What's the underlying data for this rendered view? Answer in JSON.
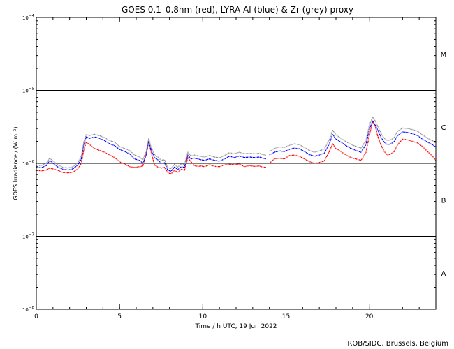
{
  "chart_data": {
    "type": "line",
    "title": "GOES 0.1–0.8nm (red), LYRA Al (blue) & Zr (grey) proxy",
    "xlabel": "Time / h UTC, 19 Jun 2022",
    "ylabel": "GOES Irradiance / (W m⁻²)",
    "xlim": [
      0,
      24
    ],
    "ylim": [
      1e-08,
      0.0001
    ],
    "yscale": "log",
    "x_ticks": [
      {
        "value": 0,
        "label": "0"
      },
      {
        "value": 5,
        "label": "5"
      },
      {
        "value": 10,
        "label": "10"
      },
      {
        "value": 15,
        "label": "15"
      },
      {
        "value": 20,
        "label": "20"
      }
    ],
    "y_ticks": [
      {
        "value": 1e-08,
        "base": "10",
        "exp": "−8"
      },
      {
        "value": 1e-07,
        "base": "10",
        "exp": "−7"
      },
      {
        "value": 1e-06,
        "base": "10",
        "exp": "−6"
      },
      {
        "value": 1e-05,
        "base": "10",
        "exp": "−5"
      },
      {
        "value": 0.0001,
        "base": "10",
        "exp": "−4"
      }
    ],
    "flare_classes": [
      {
        "label": "A",
        "value": 3.16e-08
      },
      {
        "label": "B",
        "value": 3.16e-07
      },
      {
        "label": "C",
        "value": 3.16e-06
      },
      {
        "label": "M",
        "value": 3.16e-05
      }
    ],
    "reference_lines": [
      1e-07,
      1e-06,
      1e-05
    ],
    "credit": "ROB/SIDC, Brussels, Belgium",
    "series": [
      {
        "color": "#ff0000",
        "segments": [
          {
            "x": [
              0,
              0.3,
              0.6,
              0.8,
              1.0,
              1.3,
              1.6,
              1.9,
              2.2,
              2.5,
              2.7,
              2.85,
              3.0,
              3.2,
              3.5,
              3.8,
              4.1,
              4.4,
              4.7,
              5.0,
              5.3,
              5.6,
              5.9,
              6.2,
              6.4,
              6.6,
              6.75,
              6.9,
              7.1,
              7.3,
              7.5,
              7.7,
              7.9,
              8.1,
              8.3,
              8.5,
              8.7,
              8.9,
              9.1,
              9.3,
              9.5,
              9.7,
              9.9,
              10.1,
              10.4,
              10.7,
              11.0,
              11.3,
              11.6,
              11.9,
              12.2,
              12.5,
              12.8,
              13.1,
              13.4,
              13.6,
              13.8
            ],
            "y": [
              8e-07,
              7.9e-07,
              8.1e-07,
              8.6e-07,
              8.4e-07,
              8e-07,
              7.5e-07,
              7.4e-07,
              7.6e-07,
              8.4e-07,
              1e-06,
              1.5e-06,
              1.95e-06,
              1.8e-06,
              1.6e-06,
              1.5e-06,
              1.42e-06,
              1.3e-06,
              1.2e-06,
              1.05e-06,
              9.8e-07,
              9e-07,
              8.8e-07,
              9e-07,
              9.2e-07,
              1.35e-06,
              2e-06,
              1.4e-06,
              9.5e-07,
              8.9e-07,
              8.6e-07,
              8.8e-07,
              7.4e-07,
              7.2e-07,
              8e-07,
              7.5e-07,
              8.3e-07,
              8e-07,
              1.2e-06,
              1.05e-06,
              9.3e-07,
              9.1e-07,
              9.2e-07,
              9e-07,
              9.6e-07,
              9.1e-07,
              9e-07,
              9.5e-07,
              9.7e-07,
              9.6e-07,
              9.8e-07,
              9e-07,
              9.3e-07,
              9.1e-07,
              9.2e-07,
              8.9e-07,
              8.8e-07
            ]
          },
          {
            "x": [
              14.0,
              14.3,
              14.6,
              14.9,
              15.2,
              15.5,
              15.8,
              16.1,
              16.4,
              16.7,
              17.0,
              17.3,
              17.6,
              17.8,
              18.0,
              18.3,
              18.6,
              18.9,
              19.2,
              19.5,
              19.8,
              20.0,
              20.2,
              20.35,
              20.5,
              20.7,
              20.9,
              21.1,
              21.3,
              21.5,
              21.7,
              22.0,
              22.3,
              22.6,
              22.9,
              23.2,
              23.5,
              23.8,
              24.0
            ],
            "y": [
              1e-06,
              1.15e-06,
              1.18e-06,
              1.15e-06,
              1.28e-06,
              1.3e-06,
              1.25e-06,
              1.15e-06,
              1.06e-06,
              1e-06,
              1.03e-06,
              1.08e-06,
              1.45e-06,
              1.85e-06,
              1.6e-06,
              1.45e-06,
              1.3e-06,
              1.2e-06,
              1.15e-06,
              1.1e-06,
              1.4e-06,
              2.4e-06,
              3.7e-06,
              3.3e-06,
              2.4e-06,
              1.8e-06,
              1.45e-06,
              1.3e-06,
              1.35e-06,
              1.45e-06,
              1.8e-06,
              2.15e-06,
              2.1e-06,
              2e-06,
              1.9e-06,
              1.7e-06,
              1.45e-06,
              1.25e-06,
              1.1e-06
            ]
          }
        ]
      },
      {
        "color": "#0000ff",
        "segments": [
          {
            "x": [
              0,
              0.3,
              0.6,
              0.8,
              1.0,
              1.3,
              1.6,
              1.9,
              2.2,
              2.5,
              2.7,
              2.85,
              3.0,
              3.2,
              3.5,
              3.8,
              4.1,
              4.4,
              4.7,
              5.0,
              5.3,
              5.6,
              5.9,
              6.2,
              6.4,
              6.6,
              6.75,
              6.9,
              7.1,
              7.3,
              7.5,
              7.7,
              7.9,
              8.1,
              8.3,
              8.5,
              8.7,
              8.9,
              9.1,
              9.3,
              9.5,
              9.7,
              9.9,
              10.1,
              10.4,
              10.7,
              11.0,
              11.3,
              11.6,
              11.9,
              12.2,
              12.5,
              12.8,
              13.1,
              13.4,
              13.6,
              13.8
            ],
            "y": [
              8.8e-07,
              8.7e-07,
              9.3e-07,
              1.1e-06,
              1e-06,
              8.9e-07,
              8.3e-07,
              8.1e-07,
              8.4e-07,
              9.5e-07,
              1.15e-06,
              1.8e-06,
              2.3e-06,
              2.2e-06,
              2.3e-06,
              2.2e-06,
              2.05e-06,
              1.85e-06,
              1.75e-06,
              1.55e-06,
              1.45e-06,
              1.35e-06,
              1.15e-06,
              1.1e-06,
              1e-06,
              1.3e-06,
              2e-06,
              1.5e-06,
              1.2e-06,
              1.12e-06,
              1e-06,
              1.02e-06,
              8e-07,
              7.8e-07,
              8.9e-07,
              8.2e-07,
              9e-07,
              8.8e-07,
              1.3e-06,
              1.15e-06,
              1.18e-06,
              1.15e-06,
              1.12e-06,
              1.1e-06,
              1.15e-06,
              1.1e-06,
              1.07e-06,
              1.15e-06,
              1.25e-06,
              1.2e-06,
              1.26e-06,
              1.2e-06,
              1.22e-06,
              1.2e-06,
              1.22e-06,
              1.18e-06,
              1.15e-06
            ]
          },
          {
            "x": [
              14.0,
              14.3,
              14.6,
              14.9,
              15.2,
              15.5,
              15.8,
              16.1,
              16.4,
              16.7,
              17.0,
              17.3,
              17.6,
              17.8,
              18.0,
              18.3,
              18.6,
              18.9,
              19.2,
              19.5,
              19.8,
              20.0,
              20.2,
              20.35,
              20.5,
              20.7,
              20.9,
              21.1,
              21.3,
              21.5,
              21.7,
              22.0,
              22.3,
              22.6,
              22.9,
              23.2,
              23.5,
              23.8,
              24.0
            ],
            "y": [
              1.3e-06,
              1.42e-06,
              1.48e-06,
              1.45e-06,
              1.55e-06,
              1.62e-06,
              1.58e-06,
              1.45e-06,
              1.32e-06,
              1.25e-06,
              1.3e-06,
              1.38e-06,
              1.85e-06,
              2.5e-06,
              2.15e-06,
              1.95e-06,
              1.75e-06,
              1.6e-06,
              1.5e-06,
              1.42e-06,
              1.8e-06,
              2.9e-06,
              3.8e-06,
              3.4e-06,
              2.9e-06,
              2.3e-06,
              1.95e-06,
              1.8e-06,
              1.85e-06,
              2e-06,
              2.4e-06,
              2.7e-06,
              2.65e-06,
              2.55e-06,
              2.4e-06,
              2.15e-06,
              1.95e-06,
              1.8e-06,
              1.68e-06
            ]
          }
        ]
      },
      {
        "color": "#909090",
        "segments": [
          {
            "x": [
              0,
              0.3,
              0.6,
              0.8,
              1.0,
              1.3,
              1.6,
              1.9,
              2.2,
              2.5,
              2.7,
              2.85,
              3.0,
              3.2,
              3.5,
              3.8,
              4.1,
              4.4,
              4.7,
              5.0,
              5.3,
              5.6,
              5.9,
              6.2,
              6.4,
              6.6,
              6.75,
              6.9,
              7.1,
              7.3,
              7.5,
              7.7,
              7.9,
              8.1,
              8.3,
              8.5,
              8.7,
              8.9,
              9.1,
              9.3,
              9.5,
              9.7,
              9.9,
              10.1,
              10.4,
              10.7,
              11.0,
              11.3,
              11.6,
              11.9,
              12.2,
              12.5,
              12.8,
              13.1,
              13.4,
              13.6,
              13.8
            ],
            "y": [
              9.4e-07,
              9.3e-07,
              1e-06,
              1.18e-06,
              1.08e-06,
              9.5e-07,
              8.8e-07,
              8.6e-07,
              9e-07,
              1.02e-06,
              1.25e-06,
              1.95e-06,
              2.5e-06,
              2.4e-06,
              2.5e-06,
              2.4e-06,
              2.25e-06,
              2.05e-06,
              1.95e-06,
              1.7e-06,
              1.6e-06,
              1.5e-06,
              1.3e-06,
              1.22e-06,
              1.12e-06,
              1.45e-06,
              2.2e-06,
              1.65e-06,
              1.32e-06,
              1.22e-06,
              1.1e-06,
              1.12e-06,
              8.7e-07,
              8.5e-07,
              9.7e-07,
              8.9e-07,
              9.8e-07,
              9.6e-07,
              1.42e-06,
              1.26e-06,
              1.3e-06,
              1.27e-06,
              1.24e-06,
              1.22e-06,
              1.28e-06,
              1.22e-06,
              1.19e-06,
              1.28e-06,
              1.4e-06,
              1.35e-06,
              1.42e-06,
              1.35e-06,
              1.37e-06,
              1.35e-06,
              1.37e-06,
              1.32e-06,
              1.29e-06
            ]
          },
          {
            "x": [
              14.0,
              14.3,
              14.6,
              14.9,
              15.2,
              15.5,
              15.8,
              16.1,
              16.4,
              16.7,
              17.0,
              17.3,
              17.6,
              17.8,
              18.0,
              18.3,
              18.6,
              18.9,
              19.2,
              19.5,
              19.8,
              20.0,
              20.2,
              20.35,
              20.5,
              20.7,
              20.9,
              21.1,
              21.3,
              21.5,
              21.7,
              22.0,
              22.3,
              22.6,
              22.9,
              23.2,
              23.5,
              23.8,
              24.0
            ],
            "y": [
              1.45e-06,
              1.6e-06,
              1.68e-06,
              1.65e-06,
              1.76e-06,
              1.85e-06,
              1.8e-06,
              1.65e-06,
              1.5e-06,
              1.42e-06,
              1.48e-06,
              1.57e-06,
              2.1e-06,
              2.85e-06,
              2.45e-06,
              2.2e-06,
              1.98e-06,
              1.82e-06,
              1.7e-06,
              1.62e-06,
              2.05e-06,
              3.3e-06,
              4.3e-06,
              3.85e-06,
              3.25e-06,
              2.6e-06,
              2.2e-06,
              2.05e-06,
              2.1e-06,
              2.28e-06,
              2.75e-06,
              3.05e-06,
              3e-06,
              2.9e-06,
              2.75e-06,
              2.45e-06,
              2.2e-06,
              2.05e-06,
              1.9e-06
            ]
          }
        ]
      }
    ]
  }
}
